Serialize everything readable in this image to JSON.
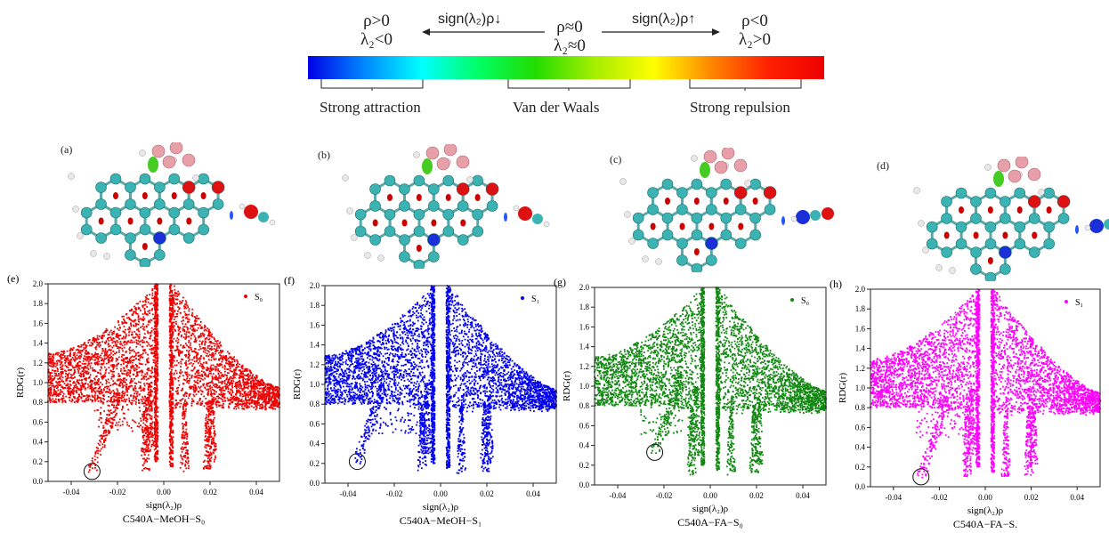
{
  "colorbar": {
    "left_top": "ρ>0",
    "left_bottom": "λ₂<0",
    "left_arrow": "sign(λ₂)ρ↓",
    "center_top": "ρ≈0",
    "center_bottom": "λ₂≈0",
    "right_arrow": "sign(λ₂)ρ↑",
    "right_top": "ρ<0",
    "right_bottom": "λ₂>0",
    "regions": [
      "Strong attraction",
      "Van der Waals",
      "Strong repulsion"
    ],
    "gradient_colors": [
      "#0000e6",
      "#0088ff",
      "#00ffff",
      "#00ff66",
      "#22dd00",
      "#aaee00",
      "#ffff00",
      "#ff8800",
      "#ff2200",
      "#ee0000"
    ]
  },
  "structures": [
    "(a)",
    "(b)",
    "(c)",
    "(d)"
  ],
  "chart_data": [
    {
      "type": "scatter",
      "panel": "(e)",
      "xlabel": "sign(λ₂)ρ",
      "ylabel": "RDG(r)",
      "xlim": [
        -0.05,
        0.05
      ],
      "ylim": [
        0,
        2.0
      ],
      "xticks": [
        "-0.04",
        "-0.02",
        "0.00",
        "0.02",
        "0.04"
      ],
      "yticks": [
        "0.0",
        "0.2",
        "0.4",
        "0.6",
        "0.8",
        "1.0",
        "1.2",
        "1.4",
        "1.6",
        "1.8",
        "2.0"
      ],
      "legend": "S₀",
      "color": "#ee0000",
      "caption": "C540A−MeOH−S₀",
      "circle": [
        -0.031,
        0.1
      ]
    },
    {
      "type": "scatter",
      "panel": "(f)",
      "xlabel": "sign(λ₂)ρ",
      "ylabel": "RDG(r)",
      "xlim": [
        -0.05,
        0.05
      ],
      "ylim": [
        0,
        2.0
      ],
      "xticks": [
        "-0.04",
        "-0.02",
        "0.00",
        "0.02",
        "0.04"
      ],
      "yticks": [
        "0.0",
        "0.2",
        "0.4",
        "0.6",
        "0.8",
        "1.0",
        "1.2",
        "1.4",
        "1.6",
        "1.8",
        "2.0"
      ],
      "legend": "S₁",
      "color": "#0000ee",
      "caption": "C540A−MeOH−S₁",
      "circle": [
        -0.036,
        0.22
      ]
    },
    {
      "type": "scatter",
      "panel": "(g)",
      "xlabel": "sign(λ₂)ρ",
      "ylabel": "RDG(r)",
      "xlim": [
        -0.05,
        0.05
      ],
      "ylim": [
        0,
        2.0
      ],
      "xticks": [
        "-0.04",
        "-0.02",
        "0.00",
        "0.02",
        "0.04"
      ],
      "yticks": [
        "0.0",
        "0.2",
        "0.4",
        "0.6",
        "0.8",
        "1.0",
        "1.2",
        "1.4",
        "1.6",
        "1.8",
        "2.0"
      ],
      "legend": "S₀",
      "color": "#118811",
      "caption": "C540A−FA−S₀",
      "circle": [
        -0.024,
        0.33
      ]
    },
    {
      "type": "scatter",
      "panel": "(h)",
      "xlabel": "sign(λ₂)ρ",
      "ylabel": "RDG(r)",
      "xlim": [
        -0.05,
        0.05
      ],
      "ylim": [
        0,
        2.0
      ],
      "xticks": [
        "-0.04",
        "-0.02",
        "0.00",
        "0.02",
        "0.04"
      ],
      "yticks": [
        "0.0",
        "0.2",
        "0.4",
        "0.6",
        "0.8",
        "1.0",
        "1.2",
        "1.4",
        "1.6",
        "1.8",
        "2.0"
      ],
      "legend": "S₁",
      "color": "#ff00ff",
      "caption": "C540A−FA−S.",
      "circle": [
        -0.028,
        0.1
      ]
    }
  ]
}
